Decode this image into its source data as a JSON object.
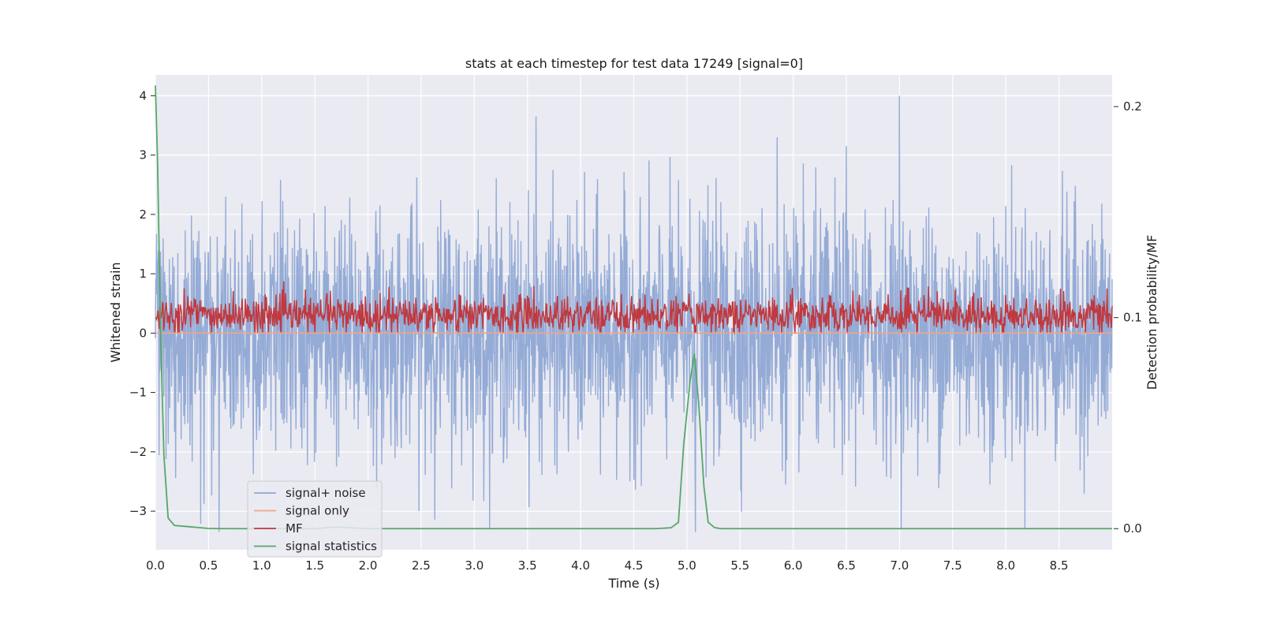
{
  "chart_data": {
    "type": "line",
    "title": "stats at each timestep for test data 17249 [signal=0]",
    "xlabel": "Time (s)",
    "ylabel": "Whitened strain",
    "ylabel_right": "Detection probability/MF",
    "xlim": [
      0.0,
      9.0
    ],
    "ylim": [
      -3.65,
      4.35
    ],
    "ylim_right": [
      -0.01,
      0.215
    ],
    "x_ticks": [
      "0.0",
      "0.5",
      "1.0",
      "1.5",
      "2.0",
      "2.5",
      "3.0",
      "3.5",
      "4.0",
      "4.5",
      "5.0",
      "5.5",
      "6.0",
      "6.5",
      "7.0",
      "7.5",
      "8.0",
      "8.5"
    ],
    "y_ticks": [
      "−3",
      "−2",
      "−1",
      "0",
      "1",
      "2",
      "3",
      "4"
    ],
    "y_ticks_right": [
      "0.0",
      "0.1",
      "0.2"
    ],
    "grid": true,
    "legend_position": "lower-left",
    "series": [
      {
        "name": "signal+ noise",
        "axis": "left",
        "color": "#8fa8d4",
        "description": "noisy whitened strain, roughly Gaussian, range about -3.4 to 4.0",
        "notable_peaks": [
          {
            "x": 3.58,
            "y": 3.65
          },
          {
            "x": 7.0,
            "y": 4.0
          },
          {
            "x": 5.85,
            "y": 3.3
          },
          {
            "x": 6.5,
            "y": 3.15
          },
          {
            "x": 0.6,
            "y": -3.35
          },
          {
            "x": 5.08,
            "y": -3.35
          }
        ]
      },
      {
        "name": "signal only",
        "axis": "left",
        "color": "#f0a58a",
        "x": [
          0.0,
          9.0
        ],
        "y": [
          0.0,
          0.0
        ]
      },
      {
        "name": "MF",
        "axis": "left",
        "color": "#c0393f",
        "description": "matched-filter output, range about 0 to 1.0, typical 0.1 to 0.6"
      },
      {
        "name": "signal statistics",
        "axis": "right",
        "color": "#55a868",
        "x": [
          0.0,
          0.02,
          0.05,
          0.08,
          0.12,
          0.18,
          0.3,
          0.5,
          0.7,
          1.0,
          1.5,
          1.7,
          2.0,
          3.0,
          4.0,
          4.7,
          4.85,
          4.92,
          4.97,
          5.03,
          5.07,
          5.11,
          5.16,
          5.2,
          5.26,
          5.32,
          5.45,
          6.0,
          7.0,
          8.0,
          9.0
        ],
        "y": [
          0.21,
          0.175,
          0.09,
          0.035,
          0.005,
          0.0015,
          0.001,
          0.0001,
          0.0,
          0.0,
          0.0,
          0.0008,
          0.0,
          0.0,
          0.0,
          0.0,
          0.0004,
          0.003,
          0.04,
          0.07,
          0.083,
          0.06,
          0.02,
          0.003,
          0.0005,
          0.0,
          0.0,
          0.0,
          0.0,
          0.0,
          0.0
        ]
      }
    ]
  }
}
